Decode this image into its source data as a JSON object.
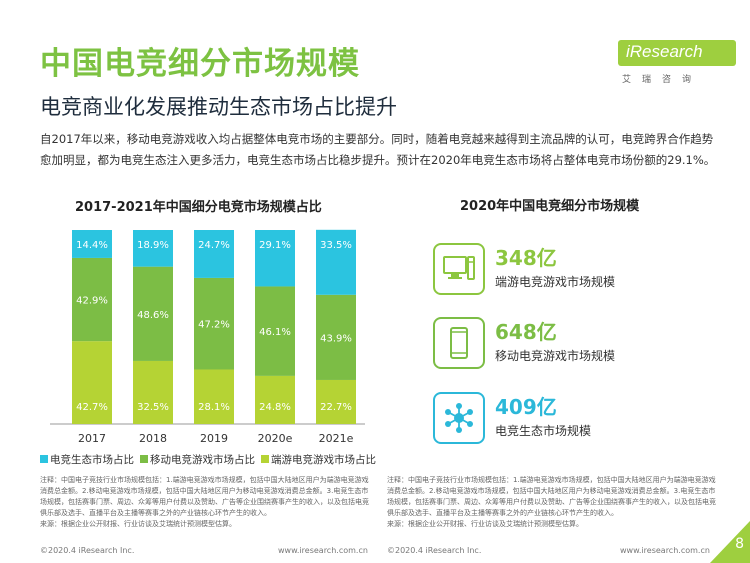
{
  "header": {
    "title": "中国电竞细分市场规模",
    "subtitle": "电竞商业化发展推动生态市场占比提升",
    "logo_text": "iResearch",
    "logo_sub": "艾瑞咨询"
  },
  "intro": "自2017年以来，移动电竞游戏收入均占据整体电竞市场的主要部分。同时，随着电竞越来越得到主流品牌的认可，电竞跨界合作趋势愈加明显，都为电竞生态注入更多活力，电竞生态市场占比稳步提升。预计在2020年电竞生态市场将占整体电竞市场份额的29.1%。",
  "chart_data": {
    "type": "bar",
    "stacked": true,
    "title": "2017-2021年中国细分电竞市场规模占比",
    "categories": [
      "2017",
      "2018",
      "2019",
      "2020e",
      "2021e"
    ],
    "series": [
      {
        "name": "端游电竞游戏市场占比",
        "color": "#b5d334",
        "values": [
          42.7,
          32.5,
          28.1,
          24.8,
          22.7
        ],
        "labels": [
          "42.7%",
          "32.5%",
          "28.1%",
          "24.8%",
          "22.7%"
        ]
      },
      {
        "name": "移动电竞游戏市场占比",
        "color": "#7cbd45",
        "values": [
          42.9,
          48.6,
          47.2,
          46.1,
          43.9
        ],
        "labels": [
          "42.9%",
          "48.6%",
          "47.2%",
          "46.1%",
          "43.9%"
        ]
      },
      {
        "name": "电竞生态市场占比",
        "color": "#2bc4e0",
        "values": [
          14.4,
          18.9,
          24.7,
          29.1,
          33.5
        ],
        "labels": [
          "14.4%",
          "18.9%",
          "24.7%",
          "29.1%",
          "33.5%"
        ]
      }
    ],
    "legend_order": [
      2,
      1,
      0
    ],
    "ylim": [
      0,
      100
    ]
  },
  "right_panel": {
    "title": "2020年中国电竞细分市场规模",
    "cards": [
      {
        "value": "348亿",
        "label": "端游电竞游戏市场规模",
        "color": "#8cc63f",
        "icon": "desktop-computer-icon"
      },
      {
        "value": "648亿",
        "label": "移动电竞游戏市场规模",
        "color": "#7cbd45",
        "icon": "mobile-phone-icon"
      },
      {
        "value": "409亿",
        "label": "电竞生态市场规模",
        "color": "#2bb8d9",
        "icon": "network-hub-icon"
      }
    ]
  },
  "notes": {
    "left_note": "注释：中国电子竞技行业市场规模包括：1.端游电竞游戏市场规模，包括中国大陆地区用户为端游电竞游戏消费总金额。2.移动电竞游戏市场规模，包括中国大陆地区用户为移动电竞游戏消费总金额。3.电竞生态市场规模，包括赛事门票、周边、众筹等用户付费以及赞助、广告等企业围绕赛事产生的收入，以及包括电竞俱乐部及选手、直播平台及主播等赛事之外的产业链核心环节产生的收入。",
    "left_source": "来源：根据企业公开财报、行业访谈及艾瑞统计预测模型估算。",
    "right_note": "注释：中国电子竞技行业市场规模包括：1.端游电竞游戏市场规模，包括中国大陆地区用户为端游电竞游戏消费总金额。2.移动电竞游戏市场规模，包括中国大陆地区用户为移动电竞游戏消费总金额。3.电竞生态市场规模，包括赛事门票、周边、众筹等用户付费以及赞助、广告等企业围绕赛事产生的收入，以及包括电竞俱乐部及选手、直播平台及主播等赛事之外的产业链核心环节产生的收入。",
    "right_source": "来源：根据企业公开财报、行业访谈及艾瑞统计预测模型估算。"
  },
  "footer": {
    "copyright_left": "©2020.4 iResearch Inc.",
    "url_left": "www.iresearch.com.cn",
    "copyright_right": "©2020.4 iResearch Inc.",
    "url_right": "www.iresearch.com.cn",
    "page_number": "8"
  }
}
